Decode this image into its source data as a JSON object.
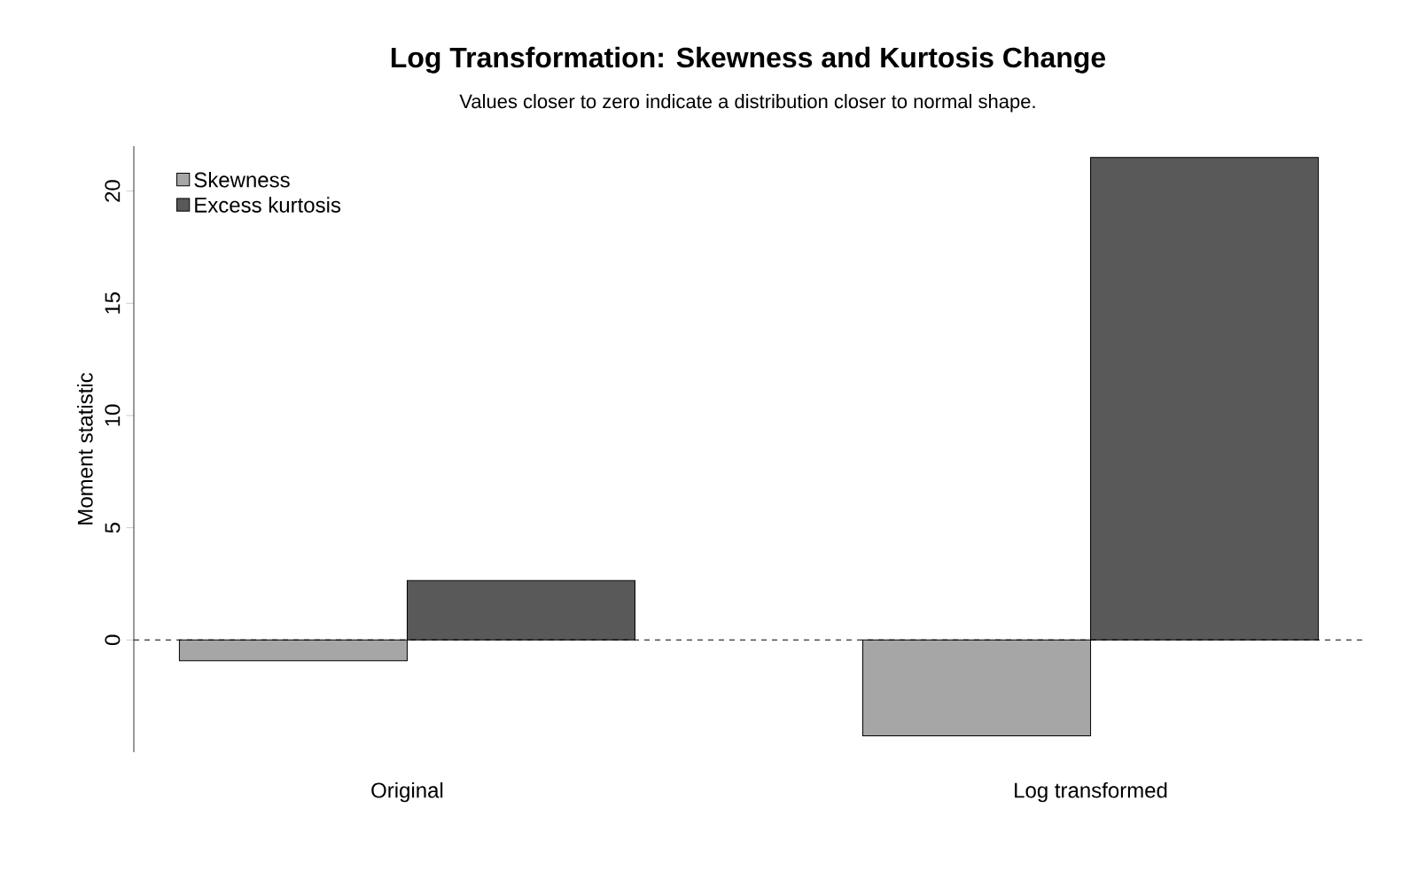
{
  "chart_data": {
    "type": "bar",
    "title": "Log Transformation: Skewness and Kurtosis Change",
    "subtitle": "Values closer to zero indicate a distribution closer to normal shape.",
    "ylabel": "Moment statistic",
    "categories": [
      "Original",
      "Log transformed"
    ],
    "series": [
      {
        "name": "Skewness",
        "color": "#a6a6a6",
        "values": [
          -0.92,
          -4.27
        ]
      },
      {
        "name": "Excess kurtosis",
        "color": "#595959",
        "values": [
          2.65,
          21.5
        ]
      }
    ],
    "ylim": [
      -5,
      22
    ],
    "yticks": [
      0,
      5,
      10,
      15,
      20
    ],
    "legend": "top left",
    "ref_lines": [
      {
        "axis": "y",
        "value": 0,
        "line_style": "dashed",
        "color": "#000000"
      }
    ]
  }
}
